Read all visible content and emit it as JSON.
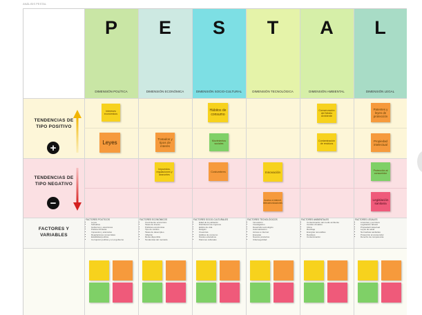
{
  "page_label": "ANÁLISIS PESTAL",
  "columns": [
    {
      "letter": "P",
      "dimension": "DIMENSIÓN POLÍTICA",
      "color": "#c9e6a5",
      "factors_title": "FACTORES POLÍTICOS",
      "factors": [
        "Leyes",
        "Subsidios",
        "Gobiernos y elecciones",
        "Política tributaria",
        "Impuestos y aranceles",
        "Regulaciones comerciales",
        "Estabilidad política",
        "Corrupción política y en el gobierno"
      ]
    },
    {
      "letter": "E",
      "dimension": "DIMENSIÓN ECONÓMICA",
      "color": "#cde9e2",
      "factors_title": "FACTORES ECONÓMICOS",
      "factors": [
        "Crecimiento económico",
        "Tasas de interés",
        "Políticas económicas",
        "Tipo de cambio",
        "Tasas de desempleo",
        "Inflación",
        "Renta disponible",
        "Tendencias del mercado"
      ]
    },
    {
      "letter": "S",
      "dimension": "DIMENSIÓN SOCIO-CULTURAL",
      "color": "#7ddfe4",
      "factors_title": "FACTORES SOCIO-CULTURALES",
      "factors": [
        "Edad de la población",
        "Distribución de ingresos",
        "Estilos de vida",
        "Religión",
        "Creencias",
        "Hábitos de consumo",
        "Niveles educativos",
        "Patrones culturales"
      ]
    },
    {
      "letter": "T",
      "dimension": "DIMENSIÓN TECNOLÓGICA",
      "color": "#e5f3a9",
      "factors_title": "FACTORES TECNOLÓGICOS",
      "factors": [
        "Innovación",
        "Investigación",
        "Desarrollo tecnológico",
        "Automatización",
        "Acceso a internet",
        "Energías",
        "Nuevos productos",
        "Ciberseguridad"
      ]
    },
    {
      "letter": "A",
      "dimension": "DIMENSIÓN AMBIENTAL",
      "color": "#d6efa8",
      "factors_title": "FACTORES AMBIENTALES",
      "factors": [
        "Contaminación del medio ambiente",
        "Cambio climático",
        "Clima",
        "Reciclaje",
        "Energías renovables",
        "Residuos",
        "Contaminación"
      ]
    },
    {
      "letter": "L",
      "dimension": "DIMENSIÓN LEGAL",
      "color": "#a8dcc6",
      "factors_title": "FACTORES LEGALES",
      "factors": [
        "Licencias y permisos",
        "Legislación laboral",
        "Propiedad intelectual",
        "Leyes de salud",
        "Normativas sanitarias",
        "Protección al consumidor",
        "Derecho de competencia"
      ]
    }
  ],
  "rows": {
    "positive": "TENDENCIAS DE TIPO POSITIVO",
    "negative": "TENDENCIAS DE TIPO NEGATIVO",
    "factors": "FACTORES Y VARIABLES"
  },
  "stickies": {
    "p_pos_1": "Intereses económicos",
    "p_pos_2": "Leyes",
    "e_pos_1": "Tratados y tipos de interés",
    "s_pos_1": "Hábitos de consumo",
    "s_pos_2": "Movimientos sociales",
    "a_pos_1": "Conservación del Medio Ambiente",
    "a_pos_2": "Contaminación de residuos",
    "l_pos_1": "Patentes y leyes de protección",
    "l_pos_2": "Propiedad intelectual",
    "e_neg_1": "Impuestos, regulaciones y aranceles",
    "s_neg_1": "Costumbres",
    "t_neg_1": "Innovación",
    "t_neg_2": "Acceso a internet, telecomunicaciones",
    "l_neg_1": "Protección al consumidor",
    "l_neg_2": "Legislación sanitaria"
  },
  "palette": {
    "yellow": "#f7d21d",
    "orange": "#f69a3c",
    "green": "#7fd067",
    "pink": "#ef5a7a"
  },
  "icons": {
    "plus": "plus-circle-icon",
    "minus": "minus-circle-icon",
    "up": "arrow-up-icon",
    "down": "arrow-down-icon"
  }
}
